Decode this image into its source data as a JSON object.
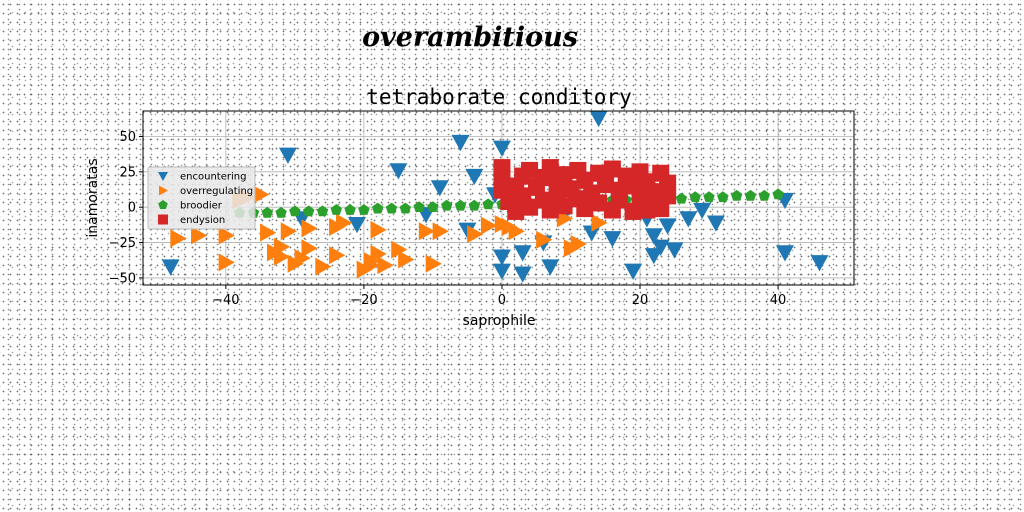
{
  "figure": {
    "suptitle": "overambitious"
  },
  "chart_data": {
    "type": "scatter",
    "title": "tetraborate conditory",
    "xlabel": "saprophile",
    "ylabel": "inamoratas",
    "xlim": [
      -52,
      51
    ],
    "ylim": [
      -55,
      68
    ],
    "xticks": [
      -40,
      -20,
      0,
      20,
      40
    ],
    "yticks": [
      -50,
      -25,
      0,
      25,
      50
    ],
    "grid": true,
    "legend_position": "center-left",
    "series": [
      {
        "name": "encountering",
        "marker": "triangle-down",
        "color": "#1f77b4",
        "points": [
          [
            -48,
            -42
          ],
          [
            -31,
            37
          ],
          [
            -29,
            -8
          ],
          [
            -21,
            -12
          ],
          [
            -15,
            26
          ],
          [
            -11,
            -5
          ],
          [
            -9,
            14
          ],
          [
            -6,
            46
          ],
          [
            -5,
            -16
          ],
          [
            -4,
            22
          ],
          [
            -1,
            9
          ],
          [
            0,
            42
          ],
          [
            0,
            -35
          ],
          [
            0,
            -45
          ],
          [
            3,
            -47
          ],
          [
            3,
            -32
          ],
          [
            6,
            -25
          ],
          [
            7,
            -42
          ],
          [
            9,
            -5
          ],
          [
            13,
            -18
          ],
          [
            14,
            63
          ],
          [
            16,
            -22
          ],
          [
            19,
            -45
          ],
          [
            21,
            -8
          ],
          [
            22,
            -20
          ],
          [
            22,
            -34
          ],
          [
            23,
            -28
          ],
          [
            24,
            -13
          ],
          [
            25,
            -30
          ],
          [
            27,
            -8
          ],
          [
            29,
            -2
          ],
          [
            31,
            -11
          ],
          [
            41,
            5
          ],
          [
            41,
            -32
          ],
          [
            46,
            -39
          ]
        ]
      },
      {
        "name": "overregulating",
        "marker": "triangle-right",
        "color": "#ff7f0e",
        "points": [
          [
            -47,
            -22
          ],
          [
            -44,
            -20
          ],
          [
            -40,
            -20
          ],
          [
            -40,
            -39
          ],
          [
            -38,
            5
          ],
          [
            -37,
            7
          ],
          [
            -35,
            9
          ],
          [
            -34,
            -18
          ],
          [
            -33,
            -32
          ],
          [
            -32,
            -28
          ],
          [
            -32,
            -35
          ],
          [
            -31,
            -17
          ],
          [
            -30,
            -40
          ],
          [
            -29,
            -36
          ],
          [
            -28,
            -15
          ],
          [
            -28,
            -29
          ],
          [
            -26,
            -42
          ],
          [
            -24,
            -14
          ],
          [
            -24,
            -34
          ],
          [
            -23,
            -11
          ],
          [
            -20,
            -44
          ],
          [
            -19,
            -41
          ],
          [
            -19,
            -38
          ],
          [
            -18,
            -33
          ],
          [
            -18,
            -16
          ],
          [
            -17,
            -41
          ],
          [
            -15,
            -30
          ],
          [
            -14,
            -37
          ],
          [
            -11,
            -17
          ],
          [
            -10,
            -40
          ],
          [
            -9,
            -17
          ],
          [
            -4,
            -19
          ],
          [
            -2,
            -13
          ],
          [
            0,
            -12
          ],
          [
            1,
            -14
          ],
          [
            2,
            -17
          ],
          [
            6,
            -23
          ],
          [
            9,
            -8
          ],
          [
            10,
            -29
          ],
          [
            11,
            -26
          ],
          [
            14,
            -11
          ]
        ]
      },
      {
        "name": "broodier",
        "marker": "pentagon",
        "color": "#2ca02c",
        "points": [
          [
            -38,
            -4
          ],
          [
            -36,
            -4
          ],
          [
            -34,
            -4
          ],
          [
            -32,
            -4
          ],
          [
            -30,
            -3
          ],
          [
            -28,
            -3
          ],
          [
            -26,
            -3
          ],
          [
            -24,
            -2
          ],
          [
            -22,
            -2
          ],
          [
            -20,
            -2
          ],
          [
            -18,
            -1
          ],
          [
            -16,
            -1
          ],
          [
            -14,
            -1
          ],
          [
            -12,
            0
          ],
          [
            -10,
            0
          ],
          [
            -8,
            1
          ],
          [
            -6,
            1
          ],
          [
            -4,
            1
          ],
          [
            -2,
            2
          ],
          [
            0,
            2
          ],
          [
            2,
            2
          ],
          [
            4,
            3
          ],
          [
            6,
            3
          ],
          [
            8,
            3
          ],
          [
            10,
            4
          ],
          [
            12,
            4
          ],
          [
            14,
            4
          ],
          [
            16,
            5
          ],
          [
            18,
            5
          ],
          [
            20,
            5
          ],
          [
            22,
            6
          ],
          [
            24,
            6
          ],
          [
            26,
            6
          ],
          [
            28,
            7
          ],
          [
            30,
            7
          ],
          [
            32,
            7
          ],
          [
            34,
            8
          ],
          [
            36,
            8
          ],
          [
            38,
            8
          ],
          [
            40,
            9
          ]
        ]
      },
      {
        "name": "endysion",
        "marker": "square",
        "color": "#d62728",
        "points": [
          [
            0,
            28
          ],
          [
            0,
            20
          ],
          [
            0,
            12
          ],
          [
            1,
            4
          ],
          [
            2,
            15
          ],
          [
            2,
            -3
          ],
          [
            3,
            22
          ],
          [
            3,
            8
          ],
          [
            4,
            26
          ],
          [
            4,
            0
          ],
          [
            5,
            14
          ],
          [
            6,
            21
          ],
          [
            6,
            5
          ],
          [
            7,
            28
          ],
          [
            7,
            -2
          ],
          [
            8,
            17
          ],
          [
            8,
            9
          ],
          [
            9,
            23
          ],
          [
            9,
            1
          ],
          [
            10,
            13
          ],
          [
            11,
            26
          ],
          [
            11,
            6
          ],
          [
            12,
            19
          ],
          [
            12,
            -1
          ],
          [
            13,
            10
          ],
          [
            14,
            24
          ],
          [
            14,
            3
          ],
          [
            15,
            16
          ],
          [
            16,
            27
          ],
          [
            16,
            -2
          ],
          [
            17,
            12
          ],
          [
            17,
            5
          ],
          [
            18,
            22
          ],
          [
            19,
            -3
          ],
          [
            19,
            15
          ],
          [
            20,
            25
          ],
          [
            20,
            7
          ],
          [
            21,
            -2
          ],
          [
            21,
            18
          ],
          [
            22,
            11
          ],
          [
            22,
            2
          ],
          [
            23,
            24
          ],
          [
            23,
            -1
          ],
          [
            24,
            17
          ],
          [
            24,
            8
          ]
        ]
      }
    ]
  }
}
